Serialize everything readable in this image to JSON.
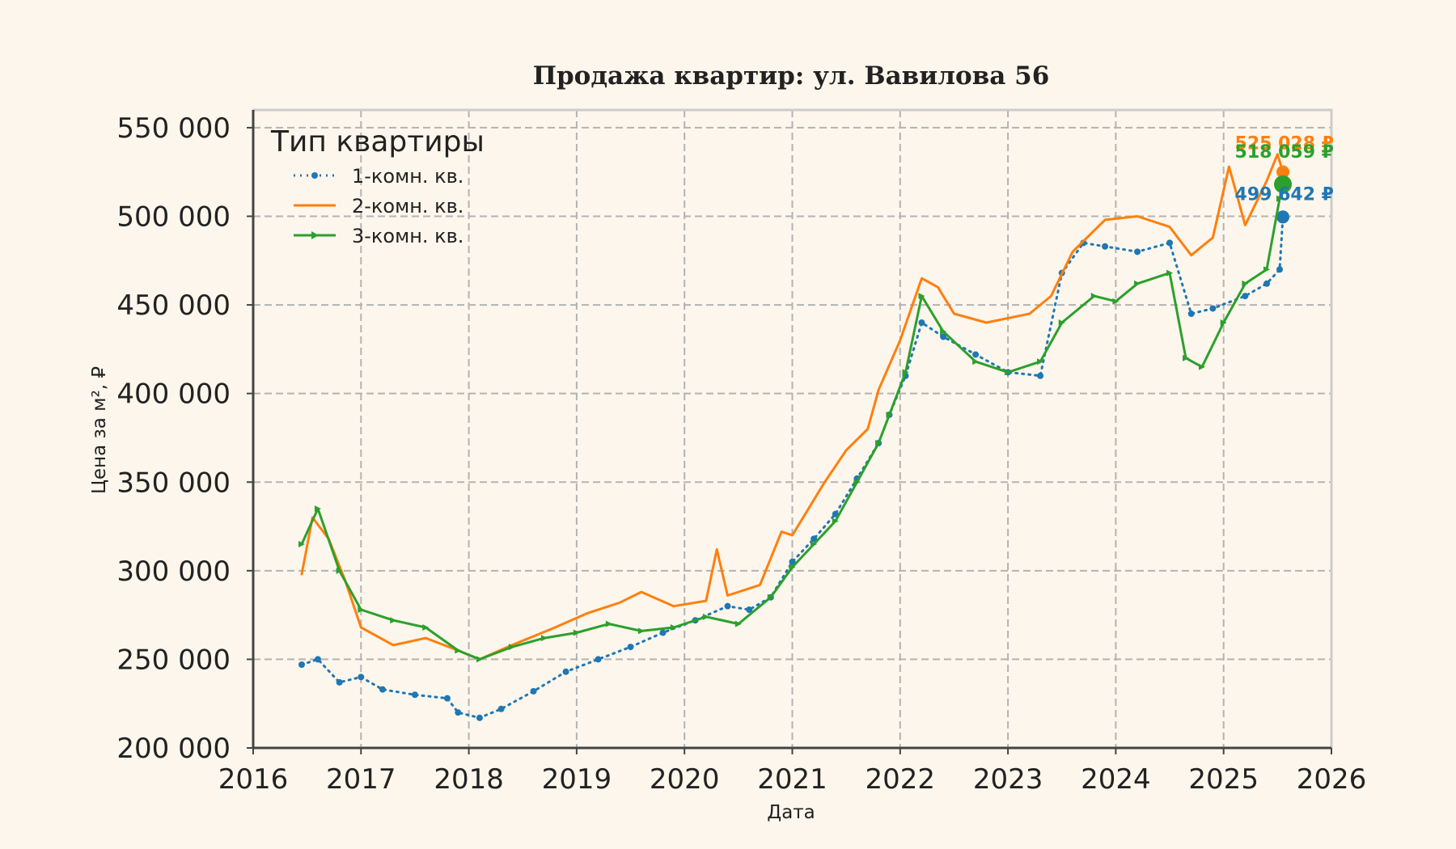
{
  "chart_data": {
    "type": "line",
    "title": "Продажа квартир: ул. Вавилова 56",
    "xlabel": "Дата",
    "ylabel": "Цена за м², ₽",
    "xlim": [
      2016,
      2026
    ],
    "ylim": [
      200000,
      560000
    ],
    "x_ticks": [
      2016,
      2017,
      2018,
      2019,
      2020,
      2021,
      2022,
      2023,
      2024,
      2025,
      2026
    ],
    "x_tick_labels": [
      "2016",
      "2017",
      "2018",
      "2019",
      "2020",
      "2021",
      "2022",
      "2023",
      "2024",
      "2025",
      "2026"
    ],
    "y_ticks": [
      200000,
      250000,
      300000,
      350000,
      400000,
      450000,
      500000,
      550000
    ],
    "y_tick_labels": [
      "200 000",
      "250 000",
      "300 000",
      "350 000",
      "400 000",
      "450 000",
      "500 000",
      "550 000"
    ],
    "grid": true,
    "legend": {
      "title": "Тип квартиры",
      "position": "top-left"
    },
    "series": [
      {
        "name": "1-комн. кв.",
        "color": "#1f77b4",
        "style": "dotted-markers",
        "points": [
          [
            2016.45,
            247000
          ],
          [
            2016.6,
            250000
          ],
          [
            2016.8,
            237000
          ],
          [
            2017.0,
            240000
          ],
          [
            2017.2,
            233000
          ],
          [
            2017.5,
            230000
          ],
          [
            2017.8,
            228000
          ],
          [
            2017.9,
            220000
          ],
          [
            2018.1,
            217000
          ],
          [
            2018.3,
            222000
          ],
          [
            2018.6,
            232000
          ],
          [
            2018.9,
            243000
          ],
          [
            2019.2,
            250000
          ],
          [
            2019.5,
            257000
          ],
          [
            2019.8,
            265000
          ],
          [
            2020.1,
            272000
          ],
          [
            2020.4,
            280000
          ],
          [
            2020.6,
            278000
          ],
          [
            2020.8,
            285000
          ],
          [
            2021.0,
            305000
          ],
          [
            2021.2,
            318000
          ],
          [
            2021.4,
            332000
          ],
          [
            2021.6,
            352000
          ],
          [
            2021.8,
            372000
          ],
          [
            2021.9,
            388000
          ],
          [
            2022.05,
            410000
          ],
          [
            2022.2,
            440000
          ],
          [
            2022.4,
            432000
          ],
          [
            2022.7,
            422000
          ],
          [
            2023.0,
            412000
          ],
          [
            2023.3,
            410000
          ],
          [
            2023.5,
            468000
          ],
          [
            2023.7,
            485000
          ],
          [
            2023.9,
            483000
          ],
          [
            2024.2,
            480000
          ],
          [
            2024.5,
            485000
          ],
          [
            2024.7,
            445000
          ],
          [
            2024.9,
            448000
          ],
          [
            2025.2,
            455000
          ],
          [
            2025.4,
            462000
          ],
          [
            2025.52,
            470000
          ],
          [
            2025.55,
            499642
          ]
        ]
      },
      {
        "name": "2-комн. кв.",
        "color": "#ff7f0e",
        "style": "line",
        "points": [
          [
            2016.45,
            298000
          ],
          [
            2016.55,
            330000
          ],
          [
            2016.7,
            318000
          ],
          [
            2016.85,
            295000
          ],
          [
            2017.0,
            268000
          ],
          [
            2017.3,
            258000
          ],
          [
            2017.6,
            262000
          ],
          [
            2017.9,
            255000
          ],
          [
            2018.1,
            250000
          ],
          [
            2018.4,
            258000
          ],
          [
            2018.8,
            268000
          ],
          [
            2019.1,
            276000
          ],
          [
            2019.4,
            282000
          ],
          [
            2019.6,
            288000
          ],
          [
            2019.9,
            280000
          ],
          [
            2020.2,
            283000
          ],
          [
            2020.3,
            312000
          ],
          [
            2020.4,
            286000
          ],
          [
            2020.7,
            292000
          ],
          [
            2020.9,
            322000
          ],
          [
            2021.0,
            320000
          ],
          [
            2021.3,
            350000
          ],
          [
            2021.5,
            368000
          ],
          [
            2021.7,
            380000
          ],
          [
            2021.8,
            402000
          ],
          [
            2022.0,
            430000
          ],
          [
            2022.2,
            465000
          ],
          [
            2022.35,
            460000
          ],
          [
            2022.5,
            445000
          ],
          [
            2022.8,
            440000
          ],
          [
            2023.2,
            445000
          ],
          [
            2023.4,
            455000
          ],
          [
            2023.6,
            480000
          ],
          [
            2023.9,
            498000
          ],
          [
            2024.2,
            500000
          ],
          [
            2024.5,
            494000
          ],
          [
            2024.7,
            478000
          ],
          [
            2024.9,
            488000
          ],
          [
            2025.05,
            528000
          ],
          [
            2025.2,
            495000
          ],
          [
            2025.4,
            520000
          ],
          [
            2025.5,
            535000
          ],
          [
            2025.55,
            525028
          ]
        ]
      },
      {
        "name": "3-комн. кв.",
        "color": "#2ca02c",
        "style": "line-markers",
        "points": [
          [
            2016.45,
            315000
          ],
          [
            2016.6,
            335000
          ],
          [
            2016.8,
            300000
          ],
          [
            2017.0,
            278000
          ],
          [
            2017.3,
            272000
          ],
          [
            2017.6,
            268000
          ],
          [
            2017.9,
            255000
          ],
          [
            2018.1,
            250000
          ],
          [
            2018.4,
            257000
          ],
          [
            2018.7,
            262000
          ],
          [
            2019.0,
            265000
          ],
          [
            2019.3,
            270000
          ],
          [
            2019.6,
            266000
          ],
          [
            2019.9,
            268000
          ],
          [
            2020.2,
            274000
          ],
          [
            2020.5,
            270000
          ],
          [
            2020.8,
            285000
          ],
          [
            2021.0,
            302000
          ],
          [
            2021.2,
            315000
          ],
          [
            2021.4,
            328000
          ],
          [
            2021.6,
            350000
          ],
          [
            2021.8,
            372000
          ],
          [
            2021.9,
            388000
          ],
          [
            2022.05,
            412000
          ],
          [
            2022.2,
            455000
          ],
          [
            2022.4,
            435000
          ],
          [
            2022.7,
            418000
          ],
          [
            2023.0,
            412000
          ],
          [
            2023.3,
            418000
          ],
          [
            2023.5,
            440000
          ],
          [
            2023.8,
            455000
          ],
          [
            2024.0,
            452000
          ],
          [
            2024.2,
            462000
          ],
          [
            2024.5,
            468000
          ],
          [
            2024.65,
            420000
          ],
          [
            2024.8,
            415000
          ],
          [
            2025.0,
            440000
          ],
          [
            2025.2,
            462000
          ],
          [
            2025.4,
            470000
          ],
          [
            2025.52,
            510000
          ],
          [
            2025.55,
            518059
          ]
        ]
      }
    ],
    "end_labels": [
      {
        "series": "2-комн. кв.",
        "text": "525 028 ₽",
        "x": 2025.55,
        "y": 525028,
        "color": "#ff7f0e"
      },
      {
        "series": "3-комн. кв.",
        "text": "518 059 ₽",
        "x": 2025.55,
        "y": 518059,
        "color": "#2ca02c"
      },
      {
        "series": "1-комн. кв.",
        "text": "499 642 ₽",
        "x": 2025.55,
        "y": 499642,
        "color": "#1f77b4"
      }
    ]
  }
}
